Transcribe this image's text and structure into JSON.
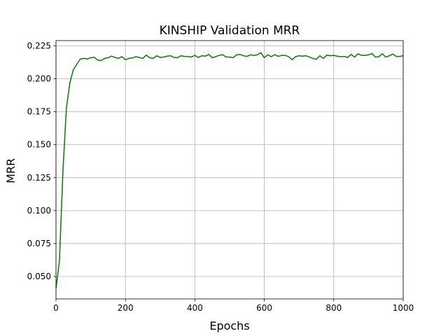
{
  "chart_data": {
    "type": "line",
    "title": "KINSHIP Validation MRR",
    "xlabel": "Epochs",
    "ylabel": "MRR",
    "xlim": [
      0,
      1000
    ],
    "ylim": [
      0.033,
      0.229
    ],
    "xticks": [
      0,
      200,
      400,
      600,
      800,
      1000
    ],
    "xtick_labels": [
      "0",
      "200",
      "400",
      "600",
      "800",
      "1000"
    ],
    "yticks": [
      0.05,
      0.075,
      0.1,
      0.125,
      0.15,
      0.175,
      0.2,
      0.225
    ],
    "ytick_labels": [
      "0.050",
      "0.075",
      "0.100",
      "0.125",
      "0.150",
      "0.175",
      "0.200",
      "0.225"
    ],
    "grid": true,
    "series": [
      {
        "color": "#008000",
        "x": [
          0,
          10,
          20,
          30,
          40,
          50,
          60,
          70,
          80,
          90,
          100,
          110,
          120,
          130,
          140,
          150,
          160,
          170,
          180,
          190,
          200,
          210,
          220,
          230,
          240,
          250,
          260,
          270,
          280,
          290,
          300,
          310,
          320,
          330,
          340,
          350,
          360,
          370,
          380,
          390,
          400,
          410,
          420,
          430,
          440,
          450,
          460,
          470,
          480,
          490,
          500,
          510,
          520,
          530,
          540,
          550,
          560,
          570,
          580,
          590,
          600,
          610,
          620,
          630,
          640,
          650,
          660,
          670,
          680,
          690,
          700,
          710,
          720,
          730,
          740,
          750,
          760,
          770,
          780,
          790,
          800,
          810,
          820,
          830,
          840,
          850,
          860,
          870,
          880,
          890,
          900,
          910,
          920,
          930,
          940,
          950,
          960,
          970,
          980,
          990,
          1000
        ],
        "y": [
          0.041,
          0.062,
          0.13,
          0.178,
          0.197,
          0.207,
          0.211,
          0.215,
          0.2155,
          0.215,
          0.216,
          0.2163,
          0.2142,
          0.2138,
          0.2155,
          0.216,
          0.2172,
          0.2162,
          0.2155,
          0.2168,
          0.2145,
          0.2155,
          0.2158,
          0.2168,
          0.2162,
          0.2155,
          0.218,
          0.216,
          0.2155,
          0.2175,
          0.2162,
          0.2165,
          0.2172,
          0.2175,
          0.2162,
          0.216,
          0.2175,
          0.217,
          0.217,
          0.2165,
          0.2178,
          0.2162,
          0.2175,
          0.2172,
          0.2185,
          0.216,
          0.2168,
          0.2178,
          0.2183,
          0.2165,
          0.2165,
          0.216,
          0.2182,
          0.2185,
          0.2175,
          0.217,
          0.2182,
          0.2178,
          0.2182,
          0.2198,
          0.216,
          0.2183,
          0.2168,
          0.2183,
          0.217,
          0.2178,
          0.2178,
          0.2168,
          0.2145,
          0.2168,
          0.2175,
          0.2172,
          0.2175,
          0.2165,
          0.2155,
          0.2148,
          0.2175,
          0.2155,
          0.218,
          0.2175,
          0.2178,
          0.2172,
          0.2168,
          0.217,
          0.2162,
          0.2185,
          0.2165,
          0.219,
          0.2178,
          0.2178,
          0.2182,
          0.2192,
          0.2165,
          0.2168,
          0.219,
          0.2165,
          0.2175,
          0.2188,
          0.217,
          0.217,
          0.2175
        ]
      }
    ]
  }
}
